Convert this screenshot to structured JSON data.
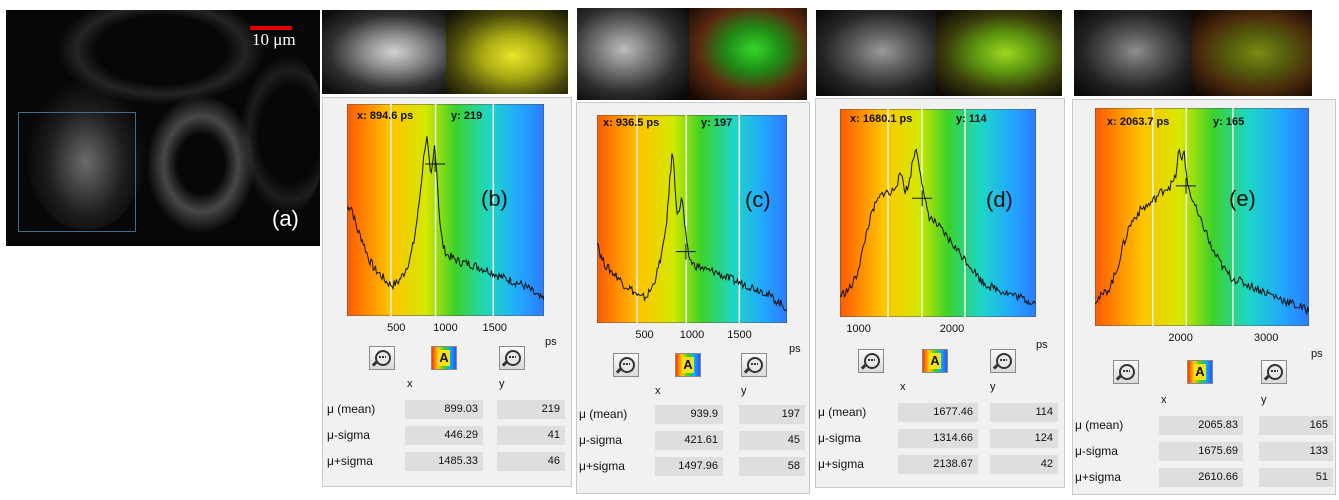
{
  "figure": {
    "main_panel": {
      "label": "(a)",
      "scalebar_label": "10 μm",
      "scalebar_color": "#e00000"
    },
    "panels": [
      {
        "id": "b",
        "label": "(b)",
        "readout_x": "x: 894.6  ps",
        "readout_y": "y: 219",
        "thumb_right_color": "yellow",
        "unit": "ps",
        "axis_x": "x",
        "axis_y": "y",
        "stats": [
          {
            "label": "μ (mean)",
            "x": "899.03",
            "y": "219"
          },
          {
            "label": "μ-sigma",
            "x": "446.29",
            "y": "41"
          },
          {
            "label": "μ+sigma",
            "x": "1485.33",
            "y": "46"
          }
        ]
      },
      {
        "id": "c",
        "label": "(c)",
        "readout_x": "x: 936.5  ps",
        "readout_y": "y: 197",
        "thumb_right_color": "green-red",
        "unit": "ps",
        "axis_x": "x",
        "axis_y": "y",
        "stats": [
          {
            "label": "μ (mean)",
            "x": "939.9",
            "y": "197"
          },
          {
            "label": "μ-sigma",
            "x": "421.61",
            "y": "45"
          },
          {
            "label": "μ+sigma",
            "x": "1497.96",
            "y": "58"
          }
        ]
      },
      {
        "id": "d",
        "label": "(d)",
        "readout_x": "x: 1680.1  ps",
        "readout_y": "y: 114",
        "thumb_right_color": "green-yellow",
        "unit": "ps",
        "axis_x": "x",
        "axis_y": "y",
        "stats": [
          {
            "label": "μ (mean)",
            "x": "1677.46",
            "y": "114"
          },
          {
            "label": "μ-sigma",
            "x": "1314.66",
            "y": "124"
          },
          {
            "label": "μ+sigma",
            "x": "2138.67",
            "y": "42"
          }
        ]
      },
      {
        "id": "e",
        "label": "(e)",
        "readout_x": "x: 2063.7  ps",
        "readout_y": "y: 165",
        "thumb_right_color": "olive-red",
        "unit": "ps",
        "axis_x": "x",
        "axis_y": "y",
        "stats": [
          {
            "label": "μ (mean)",
            "x": "2065.83",
            "y": "165"
          },
          {
            "label": "μ-sigma",
            "x": "1675.69",
            "y": "133"
          },
          {
            "label": "μ+sigma",
            "x": "2610.66",
            "y": "51"
          }
        ]
      }
    ]
  },
  "chart_data": [
    {
      "type": "line",
      "panel": "b",
      "xlim": [
        0,
        2000
      ],
      "ticks": [
        500,
        1000,
        1500
      ],
      "unit": "ps",
      "cursor": {
        "x": 894.6,
        "y": 219
      },
      "vlines": [
        446.29,
        899.03,
        1485.33
      ],
      "x": [
        0,
        40,
        100,
        160,
        220,
        280,
        340,
        400,
        460,
        520,
        580,
        640,
        680,
        720,
        760,
        790,
        810,
        830,
        850,
        870,
        890,
        910,
        930,
        950,
        980,
        1020,
        1080,
        1150,
        1250,
        1350,
        1450,
        1550,
        1650,
        1750,
        1850,
        1950,
        2000
      ],
      "y": [
        0.58,
        0.6,
        0.47,
        0.4,
        0.3,
        0.24,
        0.21,
        0.17,
        0.15,
        0.17,
        0.22,
        0.3,
        0.4,
        0.55,
        0.76,
        0.93,
        0.98,
        0.87,
        0.74,
        0.83,
        0.94,
        0.81,
        0.62,
        0.46,
        0.36,
        0.32,
        0.3,
        0.28,
        0.27,
        0.25,
        0.23,
        0.2,
        0.18,
        0.16,
        0.13,
        0.08,
        0.07
      ]
    },
    {
      "type": "line",
      "panel": "c",
      "xlim": [
        0,
        2000
      ],
      "ticks": [
        500,
        1000,
        1500
      ],
      "unit": "ps",
      "cursor": {
        "x": 936.5,
        "y": 197
      },
      "vlines": [
        421.61,
        939.9,
        1497.96
      ],
      "x": [
        0,
        40,
        100,
        160,
        220,
        280,
        340,
        400,
        460,
        520,
        580,
        640,
        700,
        740,
        770,
        790,
        810,
        830,
        850,
        870,
        890,
        910,
        930,
        950,
        980,
        1020,
        1080,
        1150,
        1250,
        1350,
        1450,
        1550,
        1650,
        1750,
        1850,
        1950,
        2000
      ],
      "y": [
        0.46,
        0.36,
        0.3,
        0.27,
        0.24,
        0.2,
        0.18,
        0.15,
        0.12,
        0.13,
        0.18,
        0.28,
        0.42,
        0.6,
        0.82,
        0.95,
        0.88,
        0.7,
        0.58,
        0.64,
        0.7,
        0.62,
        0.5,
        0.4,
        0.34,
        0.31,
        0.3,
        0.28,
        0.27,
        0.24,
        0.22,
        0.2,
        0.18,
        0.16,
        0.12,
        0.08,
        0.06
      ]
    },
    {
      "type": "line",
      "panel": "d",
      "xlim": [
        800,
        2900
      ],
      "ticks": [
        1000,
        2000
      ],
      "unit": "ps",
      "cursor": {
        "x": 1680.1,
        "y": 114
      },
      "vlines": [
        1314.66,
        1677.46,
        2138.67
      ],
      "x": [
        800,
        860,
        920,
        980,
        1040,
        1100,
        1160,
        1220,
        1280,
        1340,
        1400,
        1460,
        1500,
        1540,
        1580,
        1620,
        1660,
        1700,
        1760,
        1820,
        1880,
        1940,
        2000,
        2060,
        2120,
        2180,
        2240,
        2320,
        2420,
        2520,
        2620,
        2720,
        2820,
        2900
      ],
      "y": [
        0.1,
        0.12,
        0.15,
        0.22,
        0.35,
        0.5,
        0.6,
        0.66,
        0.7,
        0.68,
        0.74,
        0.8,
        0.7,
        0.74,
        0.88,
        0.95,
        0.82,
        0.66,
        0.55,
        0.52,
        0.48,
        0.44,
        0.4,
        0.36,
        0.32,
        0.28,
        0.24,
        0.18,
        0.15,
        0.13,
        0.11,
        0.09,
        0.07,
        0.06
      ]
    },
    {
      "type": "line",
      "panel": "e",
      "xlim": [
        1000,
        3500
      ],
      "ticks": [
        2000,
        3000
      ],
      "unit": "ps",
      "cursor": {
        "x": 2063.7,
        "y": 165
      },
      "vlines": [
        1675.69,
        2065.83,
        2610.66
      ],
      "x": [
        1000,
        1080,
        1160,
        1240,
        1320,
        1400,
        1480,
        1560,
        1640,
        1720,
        1800,
        1880,
        1940,
        1980,
        2010,
        2040,
        2070,
        2110,
        2160,
        2220,
        2290,
        2360,
        2440,
        2520,
        2600,
        2700,
        2800,
        2900,
        3000,
        3100,
        3200,
        3300,
        3400,
        3500
      ],
      "y": [
        0.12,
        0.14,
        0.18,
        0.26,
        0.4,
        0.52,
        0.58,
        0.62,
        0.64,
        0.68,
        0.72,
        0.74,
        0.78,
        0.94,
        0.86,
        0.95,
        0.78,
        0.7,
        0.64,
        0.56,
        0.5,
        0.4,
        0.34,
        0.28,
        0.24,
        0.22,
        0.2,
        0.18,
        0.16,
        0.14,
        0.12,
        0.1,
        0.08,
        0.06
      ]
    }
  ]
}
